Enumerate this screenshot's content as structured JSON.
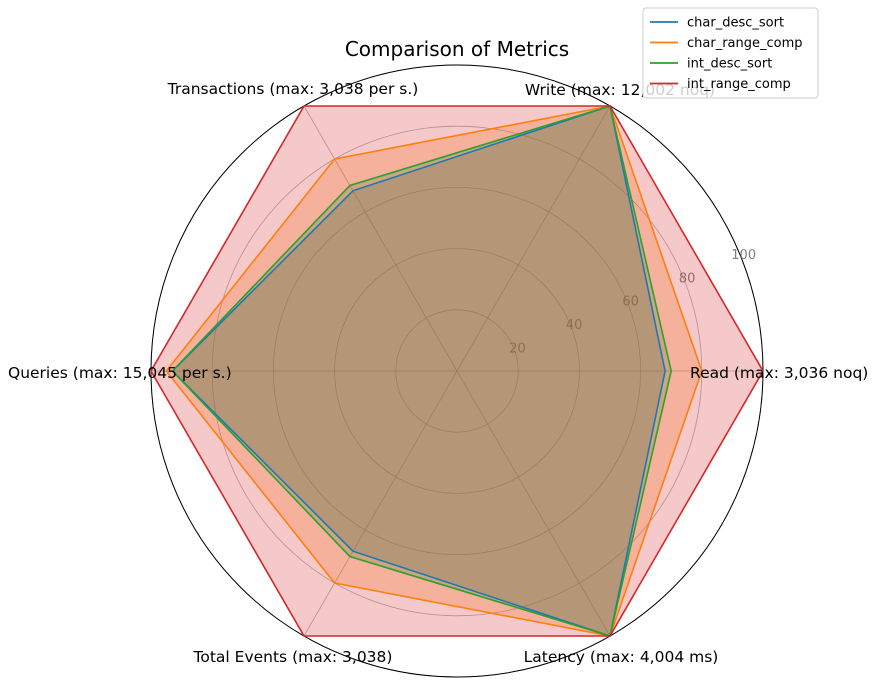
{
  "chart_data": {
    "type": "radar",
    "title": "Comparison of Metrics",
    "axes": [
      "Read (max: 3,036 noq)",
      "Write (max: 12,002 noq)",
      "Transactions (max: 3,038 per s.)",
      "Queries (max: 15,045 per s.)",
      "Total Events (max: 3,038)",
      "Latency (max: 4,004 ms)"
    ],
    "rlim": [
      0,
      100
    ],
    "rticks": [
      20,
      40,
      60,
      80,
      100
    ],
    "rtick_labels": [
      "20",
      "40",
      "60",
      "80",
      "100"
    ],
    "grid": true,
    "legend_position": "top-right",
    "series": [
      {
        "name": "char_desc_sort",
        "color": "#1f77b4",
        "filled": true,
        "values": [
          68,
          100,
          68,
          93,
          68,
          100
        ]
      },
      {
        "name": "char_range_comp",
        "color": "#ff7f0e",
        "filled": true,
        "values": [
          80,
          100,
          80,
          95,
          80,
          100
        ]
      },
      {
        "name": "int_desc_sort",
        "color": "#2ca02c",
        "filled": true,
        "values": [
          70,
          100,
          70,
          93,
          70,
          100
        ]
      },
      {
        "name": "int_range_comp",
        "color": "#d62728",
        "filled": true,
        "values": [
          100,
          100,
          100,
          100,
          100,
          100
        ]
      }
    ]
  }
}
